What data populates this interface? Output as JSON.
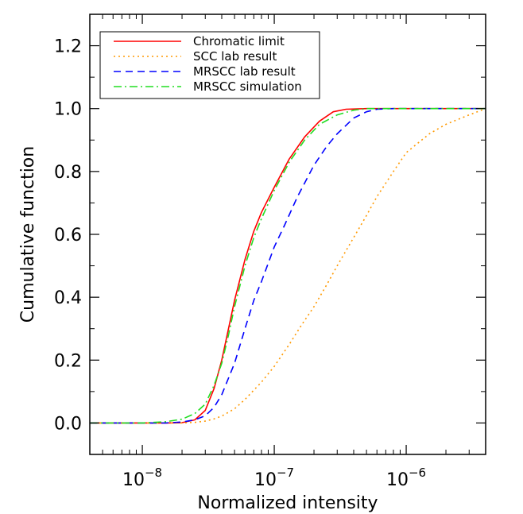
{
  "chart_data": {
    "type": "line",
    "xlabel": "Normalized intensity",
    "ylabel": "Cumulative function",
    "xscale": "log",
    "xlim": [
      4e-09,
      4e-06
    ],
    "ylim": [
      -0.1,
      1.3
    ],
    "grid": false,
    "legend_position": "top-left",
    "x_ticks": [
      {
        "value": 1e-08,
        "base": "10",
        "exponent": "−8"
      },
      {
        "value": 1e-07,
        "base": "10",
        "exponent": "−7"
      },
      {
        "value": 1e-06,
        "base": "10",
        "exponent": "−6"
      }
    ],
    "y_ticks": [
      {
        "value": 0.0,
        "label": "0.0"
      },
      {
        "value": 0.2,
        "label": "0.2"
      },
      {
        "value": 0.4,
        "label": "0.4"
      },
      {
        "value": 0.6,
        "label": "0.6"
      },
      {
        "value": 0.8,
        "label": "0.8"
      },
      {
        "value": 1.0,
        "label": "1.0"
      },
      {
        "value": 1.2,
        "label": "1.2"
      }
    ],
    "series": [
      {
        "name": "Chromatic limit",
        "color": "#ff0000",
        "dash": "solid",
        "points": [
          [
            4e-09,
            0
          ],
          [
            1.5e-08,
            0
          ],
          [
            2e-08,
            0.001
          ],
          [
            2.5e-08,
            0.01
          ],
          [
            3e-08,
            0.04
          ],
          [
            3.5e-08,
            0.11
          ],
          [
            4e-08,
            0.2
          ],
          [
            4.5e-08,
            0.3
          ],
          [
            5e-08,
            0.39
          ],
          [
            6e-08,
            0.52
          ],
          [
            7e-08,
            0.61
          ],
          [
            8e-08,
            0.67
          ],
          [
            1e-07,
            0.75
          ],
          [
            1.3e-07,
            0.84
          ],
          [
            1.7e-07,
            0.91
          ],
          [
            2.2e-07,
            0.96
          ],
          [
            2.8e-07,
            0.99
          ],
          [
            3.5e-07,
            0.998
          ],
          [
            5e-07,
            1.0
          ],
          [
            4e-06,
            1.0
          ]
        ]
      },
      {
        "name": "SCC lab result",
        "color": "#ff9900",
        "dash": "dotted",
        "points": [
          [
            4e-09,
            0
          ],
          [
            2e-08,
            0
          ],
          [
            2.5e-08,
            0.002
          ],
          [
            3e-08,
            0.006
          ],
          [
            3.5e-08,
            0.013
          ],
          [
            4e-08,
            0.022
          ],
          [
            5e-08,
            0.045
          ],
          [
            6e-08,
            0.075
          ],
          [
            8e-08,
            0.13
          ],
          [
            1e-07,
            0.18
          ],
          [
            1.3e-07,
            0.25
          ],
          [
            1.6e-07,
            0.31
          ],
          [
            2e-07,
            0.37
          ],
          [
            2.5e-07,
            0.44
          ],
          [
            3e-07,
            0.5
          ],
          [
            4e-07,
            0.59
          ],
          [
            5e-07,
            0.66
          ],
          [
            6e-07,
            0.72
          ],
          [
            8e-07,
            0.8
          ],
          [
            1e-06,
            0.86
          ],
          [
            1.5e-06,
            0.92
          ],
          [
            2e-06,
            0.95
          ],
          [
            3e-06,
            0.98
          ],
          [
            4e-06,
            1.0
          ]
        ]
      },
      {
        "name": "MRSCC lab result",
        "color": "#0000ff",
        "dash": "dashed",
        "points": [
          [
            4e-09,
            0
          ],
          [
            1.5e-08,
            0
          ],
          [
            2e-08,
            0.003
          ],
          [
            2.5e-08,
            0.01
          ],
          [
            3e-08,
            0.023
          ],
          [
            3.5e-08,
            0.05
          ],
          [
            4e-08,
            0.09
          ],
          [
            5e-08,
            0.19
          ],
          [
            6e-08,
            0.3
          ],
          [
            7e-08,
            0.39
          ],
          [
            8e-08,
            0.45
          ],
          [
            1e-07,
            0.56
          ],
          [
            1.2e-07,
            0.63
          ],
          [
            1.5e-07,
            0.72
          ],
          [
            2e-07,
            0.82
          ],
          [
            2.5e-07,
            0.88
          ],
          [
            3e-07,
            0.92
          ],
          [
            4e-07,
            0.97
          ],
          [
            5e-07,
            0.99
          ],
          [
            6e-07,
            0.998
          ],
          [
            8e-07,
            1.0
          ],
          [
            4e-06,
            1.0
          ]
        ]
      },
      {
        "name": "MRSCC simulation",
        "color": "#22dd22",
        "dash": "dashdot",
        "points": [
          [
            4e-09,
            0
          ],
          [
            1e-08,
            0
          ],
          [
            1.5e-08,
            0.004
          ],
          [
            2e-08,
            0.012
          ],
          [
            2.5e-08,
            0.03
          ],
          [
            3e-08,
            0.06
          ],
          [
            3.5e-08,
            0.12
          ],
          [
            4e-08,
            0.19
          ],
          [
            4.5e-08,
            0.28
          ],
          [
            5e-08,
            0.37
          ],
          [
            6e-08,
            0.5
          ],
          [
            7e-08,
            0.59
          ],
          [
            8e-08,
            0.65
          ],
          [
            1e-07,
            0.74
          ],
          [
            1.3e-07,
            0.83
          ],
          [
            1.7e-07,
            0.9
          ],
          [
            2.2e-07,
            0.95
          ],
          [
            3e-07,
            0.98
          ],
          [
            4e-07,
            0.995
          ],
          [
            5e-07,
            1.0
          ],
          [
            4e-06,
            1.0
          ]
        ]
      }
    ]
  }
}
